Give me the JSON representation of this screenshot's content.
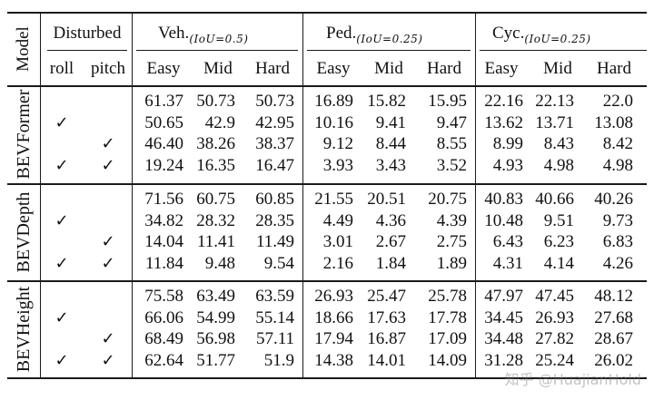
{
  "header": {
    "model_label": "Model",
    "disturbed_label": "Disturbed",
    "sub_roll": "roll",
    "sub_pitch": "pitch",
    "groups": [
      {
        "name": "Veh.",
        "iou": "(IoU=0.5)"
      },
      {
        "name": "Ped.",
        "iou": "(IoU=0.25)"
      },
      {
        "name": "Cyc.",
        "iou": "(IoU=0.25)"
      }
    ],
    "difficulty": [
      "Easy",
      "Mid",
      "Hard"
    ]
  },
  "check_glyph": "✓",
  "blocks": [
    {
      "model": "BEVFormer",
      "rows": [
        {
          "roll": "",
          "pitch": "",
          "values": [
            "61.37",
            "50.73",
            "50.73",
            "16.89",
            "15.82",
            "15.95",
            "22.16",
            "22.13",
            "22.0"
          ]
        },
        {
          "roll": "✓",
          "pitch": "",
          "values": [
            "50.65",
            "42.9",
            "42.95",
            "10.16",
            "9.41",
            "9.47",
            "13.62",
            "13.71",
            "13.08"
          ]
        },
        {
          "roll": "",
          "pitch": "✓",
          "values": [
            "46.40",
            "38.26",
            "38.37",
            "9.12",
            "8.44",
            "8.55",
            "8.99",
            "8.43",
            "8.42"
          ]
        },
        {
          "roll": "✓",
          "pitch": "✓",
          "values": [
            "19.24",
            "16.35",
            "16.47",
            "3.93",
            "3.43",
            "3.52",
            "4.93",
            "4.98",
            "4.98"
          ]
        }
      ]
    },
    {
      "model": "BEVDepth",
      "rows": [
        {
          "roll": "",
          "pitch": "",
          "values": [
            "71.56",
            "60.75",
            "60.85",
            "21.55",
            "20.51",
            "20.75",
            "40.83",
            "40.66",
            "40.26"
          ]
        },
        {
          "roll": "✓",
          "pitch": "",
          "values": [
            "34.82",
            "28.32",
            "28.35",
            "4.49",
            "4.36",
            "4.39",
            "10.48",
            "9.51",
            "9.73"
          ]
        },
        {
          "roll": "",
          "pitch": "✓",
          "values": [
            "14.04",
            "11.41",
            "11.49",
            "3.01",
            "2.67",
            "2.75",
            "6.43",
            "6.23",
            "6.83"
          ]
        },
        {
          "roll": "✓",
          "pitch": "✓",
          "values": [
            "11.84",
            "9.48",
            "9.54",
            "2.16",
            "1.84",
            "1.89",
            "4.31",
            "4.14",
            "4.26"
          ]
        }
      ]
    },
    {
      "model": "BEVHeight",
      "rows": [
        {
          "roll": "",
          "pitch": "",
          "values": [
            "75.58",
            "63.49",
            "63.59",
            "26.93",
            "25.47",
            "25.78",
            "47.97",
            "47.45",
            "48.12"
          ]
        },
        {
          "roll": "✓",
          "pitch": "",
          "values": [
            "66.06",
            "54.99",
            "55.14",
            "18.66",
            "17.63",
            "17.78",
            "34.45",
            "26.93",
            "27.68"
          ]
        },
        {
          "roll": "",
          "pitch": "✓",
          "values": [
            "68.49",
            "56.98",
            "57.11",
            "17.94",
            "16.87",
            "17.09",
            "34.48",
            "27.82",
            "28.67"
          ]
        },
        {
          "roll": "✓",
          "pitch": "✓",
          "values": [
            "62.64",
            "51.77",
            "51.9",
            "14.38",
            "14.01",
            "14.09",
            "31.28",
            "25.24",
            "26.02"
          ]
        }
      ]
    }
  ],
  "watermark": "知乎 @HuajianHold"
}
